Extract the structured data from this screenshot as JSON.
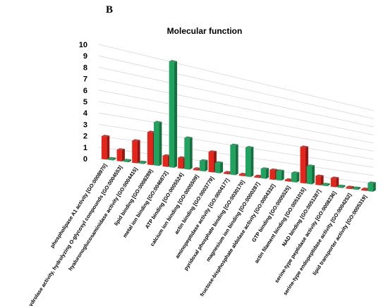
{
  "panel_label": "B",
  "chart_data": {
    "type": "bar",
    "title": "Molecular function",
    "categories": [
      "phospholipase A1 activity [GO:0008970]",
      "hydrolase activity, hydrolyzing O-glycosyl compounds [GO:0004553]",
      "hyaluronoglucosaminidase activity [GO:0004415]",
      "lipid binding [GO:0008289]",
      "metal ion binding [GO:0046872]",
      "ATP binding [GO:0005524]",
      "calcium ion binding [GO:0005509]",
      "actin binding [GO:0003779]",
      "aminopeptidase activity [GO:0004177]",
      "pyridoxal phosphate binding [GO:0030170]",
      "magnesium ion binding [GO:0000287]",
      "fructose-bisphosphate aldolase activity [GO:0004332]",
      "GTP binding [GO:0005525]",
      "actin filament binding [GO:0051015]",
      "NAD binding [GO:0051287]",
      "serine-type peptidase activity [GO:0008236]",
      "serine-type endopeptidase activity [GO:0004252]",
      "lipid transporter activity [GO:0005319]"
    ],
    "series": [
      {
        "values": [
          2,
          1,
          2,
          3,
          1,
          1,
          0,
          2,
          0,
          0,
          0,
          1,
          0,
          4,
          1,
          1,
          0,
          0
        ]
      },
      {
        "values": [
          0,
          0,
          0,
          4,
          10,
          3,
          1,
          1,
          3,
          3,
          1,
          1,
          1,
          2,
          0,
          0,
          0,
          1
        ]
      }
    ],
    "ylim": [
      0,
      10
    ],
    "yticks": [
      "0",
      "1",
      "2",
      "3",
      "4",
      "5",
      "6",
      "7",
      "8",
      "9",
      "10"
    ],
    "grid": true,
    "legend": "none",
    "colors": {
      "series1": "#e3251c",
      "series2": "#1fa35e",
      "series1_shade": "#9a1410",
      "series2_shade": "#14703f",
      "grid": "#d9d9d9"
    }
  }
}
